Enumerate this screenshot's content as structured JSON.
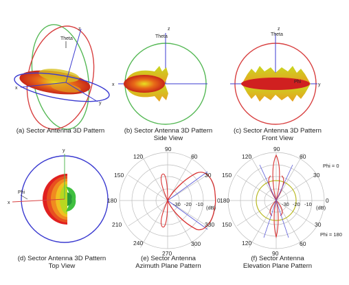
{
  "panels": [
    {
      "caption1": "(a) Sector Antenna 3D Pattern",
      "caption2": "",
      "axes": {
        "z": "z",
        "x": "x",
        "y": "y",
        "theta": "Theta"
      }
    },
    {
      "caption1": "(b) Sector Antenna 3D Pattern",
      "caption2": "Side View",
      "axes": {
        "z": "z",
        "x": "x",
        "theta": "Theta"
      }
    },
    {
      "caption1": "(c) Sector Antenna 3D Pattern",
      "caption2": "Front View",
      "axes": {
        "z": "z",
        "y": "y",
        "theta": "Theta",
        "phi": "Phi"
      }
    },
    {
      "caption1": "(d) Sector Antenna 3D Pattern",
      "caption2": "Top View",
      "axes": {
        "y": "y",
        "x": "x",
        "phi": "Phi"
      }
    },
    {
      "caption1": "(e) Sector Antenna",
      "caption2": "Azimuth Plane Pattern",
      "angle_labels": [
        "90",
        "60",
        "30",
        "0",
        "330",
        "300",
        "270",
        "240",
        "210",
        "180",
        "150",
        "120"
      ],
      "radial_labels": [
        "-30",
        "-20",
        "-10"
      ],
      "unit": "(dB)"
    },
    {
      "caption1": "(f) Sector Antenna",
      "caption2": "Elevation Plane Pattern",
      "angle_labels": [
        "90",
        "60",
        "30",
        "0",
        "30",
        "60",
        "90",
        "120",
        "150",
        "180",
        "150",
        "120"
      ],
      "radial_labels": [
        "-30",
        "-20",
        "-10"
      ],
      "unit": "(dB)",
      "phi_top": "Phi = 0",
      "phi_bottom": "Phi = 180"
    }
  ],
  "colors": {
    "ring_green": "#55b855",
    "ring_blue": "#3a3ad0",
    "ring_red": "#d84040",
    "lobe_red": "#d81e1e",
    "lobe_yellow": "#e8d020",
    "grid": "#bbbbbb",
    "pattern_red": "#d83030",
    "ring_olive": "#b8b820"
  }
}
